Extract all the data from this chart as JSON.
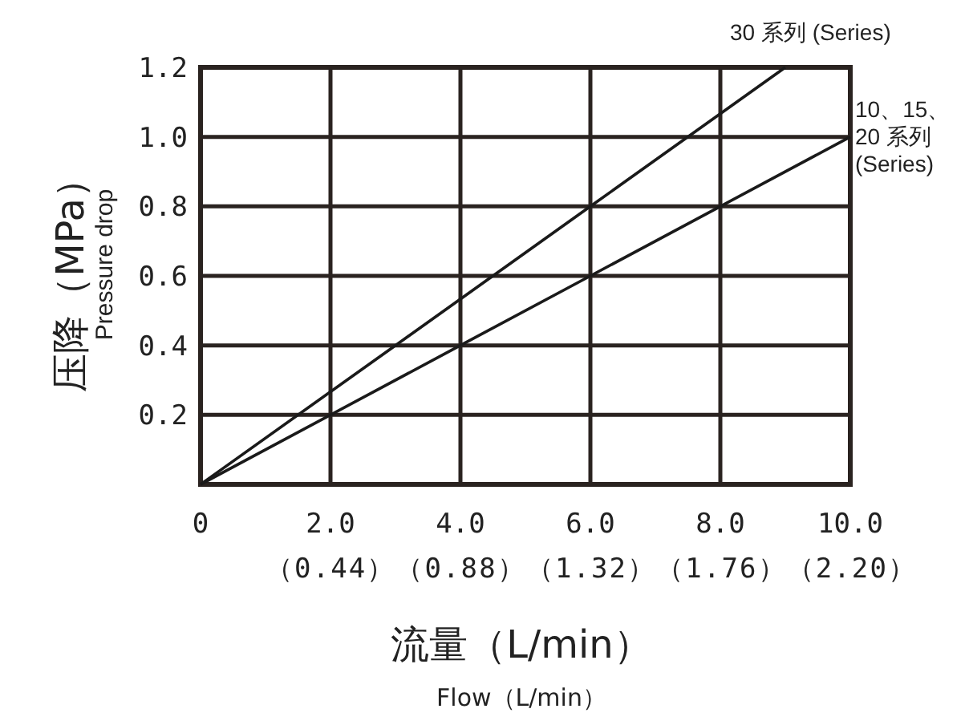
{
  "chart_data": {
    "type": "line",
    "xlabel": "流量（L/min）",
    "ylabel": "压降（MPa）",
    "annotations": [
      "Pressure drop",
      "Flow（L/min）",
      "（0.44）（0.88）（1.32）（1.76）（2.20）"
    ],
    "xlim": [
      0,
      10
    ],
    "ylim": [
      0,
      1.2
    ],
    "xticks": [
      0,
      {
        "value": 2,
        "label": "2.0"
      },
      {
        "value": 4,
        "label": "4.0"
      },
      {
        "value": 6,
        "label": "6.0"
      },
      {
        "value": 8,
        "label": "8.0"
      },
      {
        "value": 10,
        "label": "10.0"
      }
    ],
    "yticks": [
      {
        "value": 0,
        "label": null
      },
      {
        "value": 0.2,
        "label": "0.2"
      },
      {
        "value": 0.4,
        "label": "0.4"
      },
      {
        "value": 0.6,
        "label": "0.6"
      },
      {
        "value": 0.8,
        "label": "0.8"
      },
      {
        "value": 1.0,
        "label": "1.0"
      },
      {
        "value": 1.2,
        "label": "1.2"
      }
    ],
    "grid": true,
    "legend": false,
    "marker": "none",
    "line_style": "solid",
    "series": [
      {
        "name": "30 系列 (Series)",
        "color": "#1a1a1a",
        "x": [
          0,
          3,
          6,
          9
        ],
        "values": [
          0,
          0.4,
          0.8,
          1.2
        ]
      },
      {
        "name": "10、15、20 系列 (Series)",
        "color": "#1a1a1a",
        "x": [
          0,
          4,
          6,
          8,
          10
        ],
        "values": [
          0,
          0.4,
          0.6,
          0.8,
          1.0
        ]
      }
    ]
  }
}
